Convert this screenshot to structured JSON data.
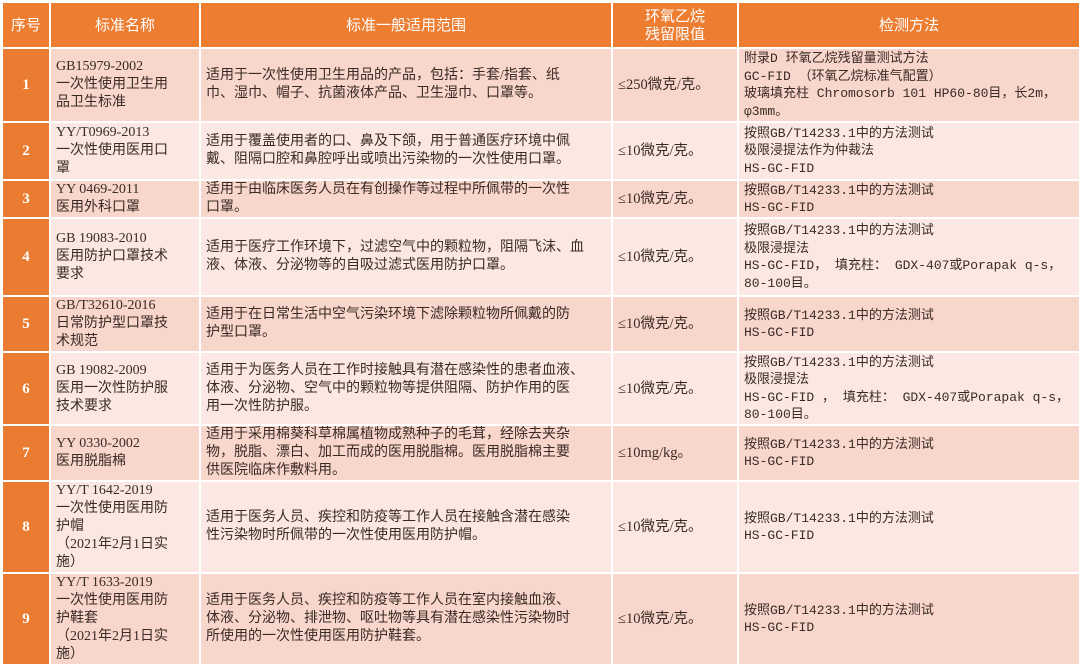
{
  "colors": {
    "header": "#ec7d31",
    "number_column": "#e97c30",
    "row_odd": "#f8d6cb",
    "row_even": "#fbe8e3"
  },
  "headers": [
    "序号",
    "标准名称",
    "标准一般适用范围",
    "环氧乙烷\n残留限值",
    "检测方法"
  ],
  "rows": [
    {
      "no": "1",
      "name": "GB15979-2002\n一次性使用卫生用\n品卫生标准",
      "scope": "适用于一次性使用卫生用品的产品，包括：手套/指套、纸\n巾、湿巾、帽子、抗菌液体产品、卫生湿巾、口罩等。",
      "limit": "≤250微克/克。",
      "method": "附录D 环氧乙烷残留量测试方法\nGC-FID （环氧乙烷标准气配置）\n玻璃填充柱 Chromosorb 101 HP60-80目，长2m，\nφ3mm。"
    },
    {
      "no": "2",
      "name": "YY/T0969-2013\n一次性使用医用口\n罩",
      "scope": "适用于覆盖使用者的口、鼻及下颌，用于普通医疗环境中佩\n戴、阻隔口腔和鼻腔呼出或喷出污染物的一次性使用口罩。",
      "limit": "≤10微克/克。",
      "method": "按照GB/T14233.1中的方法测试\n极限浸提法作为仲裁法\nHS-GC-FID"
    },
    {
      "no": "3",
      "name": "YY 0469-2011\n医用外科口罩",
      "scope": "适用于由临床医务人员在有创操作等过程中所佩带的一次性\n口罩。",
      "limit": "≤10微克/克。",
      "method": "按照GB/T14233.1中的方法测试\nHS-GC-FID"
    },
    {
      "no": "4",
      "name": "GB 19083-2010\n医用防护口罩技术\n要求",
      "scope": "适用于医疗工作环境下，过滤空气中的颗粒物，阻隔飞沫、血\n液、体液、分泌物等的自吸过滤式医用防护口罩。",
      "limit": "≤10微克/克。",
      "method": "按照GB/T14233.1中的方法测试\n极限浸提法\nHS-GC-FID， 填充柱： GDX-407或Porapak q-s，\n80-100目。"
    },
    {
      "no": "5",
      "name": "GB/T32610-2016\n日常防护型口罩技\n术规范",
      "scope": "适用于在日常生活中空气污染环境下滤除颗粒物所佩戴的防\n护型口罩。",
      "limit": "≤10微克/克。",
      "method": "按照GB/T14233.1中的方法测试\nHS-GC-FID"
    },
    {
      "no": "6",
      "name": "GB 19082-2009\n医用一次性防护服\n技术要求",
      "scope": "适用于为医务人员在工作时接触具有潜在感染性的患者血液、\n体液、分泌物、空气中的颗粒物等提供阻隔、防护作用的医\n用一次性防护服。",
      "limit": "≤10微克/克。",
      "method": "按照GB/T14233.1中的方法测试\n极限浸提法\nHS-GC-FID ， 填充柱： GDX-407或Porapak q-s，\n80-100目。"
    },
    {
      "no": "7",
      "name": "YY 0330-2002\n医用脱脂棉",
      "scope": "适用于采用棉葵科草棉属植物成熟种子的毛茸，经除去夹杂\n物，脱脂、漂白、加工而成的医用脱脂棉。医用脱脂棉主要\n供医院临床作敷料用。",
      "limit": "≤10mg/kg。",
      "method": "按照GB/T14233.1中的方法测试\nHS-GC-FID"
    },
    {
      "no": "8",
      "name": "YY/T 1642-2019\n一次性使用医用防\n护帽\n （2021年2月1日实\n施）",
      "scope": "适用于医务人员、疾控和防疫等工作人员在接触含潜在感染\n性污染物时所佩带的一次性使用医用防护帽。",
      "limit": "≤10微克/克。",
      "method": "按照GB/T14233.1中的方法测试\nHS-GC-FID"
    },
    {
      "no": "9",
      "name": "YY/T 1633-2019\n一次性使用医用防\n护鞋套\n （2021年2月1日实\n施）",
      "scope": "适用于医务人员、疾控和防疫等工作人员在室内接触血液、\n体液、分泌物、排泄物、呕吐物等具有潜在感染性污染物时\n所使用的一次性使用医用防护鞋套。",
      "limit": "≤10微克/克。",
      "method": "按照GB/T14233.1中的方法测试\nHS-GC-FID"
    }
  ]
}
